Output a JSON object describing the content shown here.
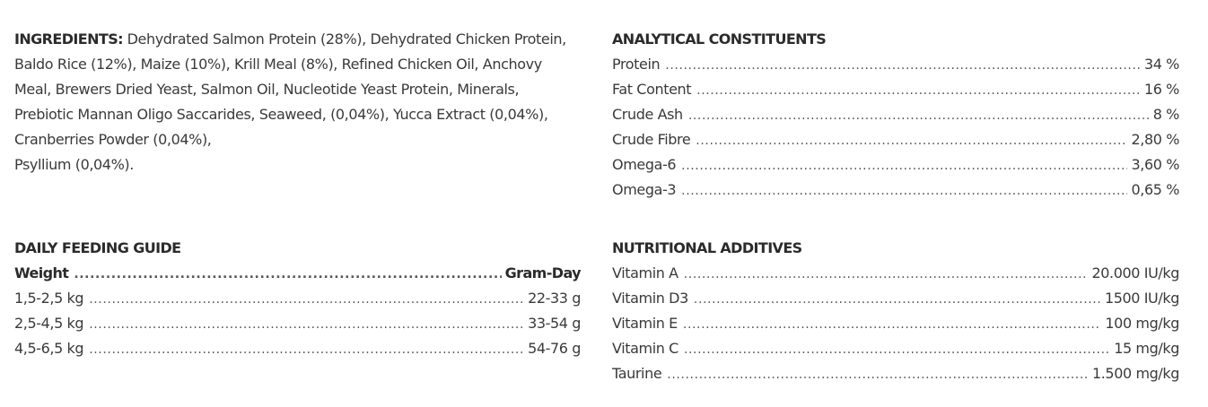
{
  "ingredients": {
    "label": "INGREDIENTS:",
    "lines": [
      "Dehydrated Salmon Protein (28%), Dehydrated Chicken Protein,",
      "Baldo Rice (12%), Maize (10%), Krill Meal (8%), Refined Chicken Oil, Anchovy",
      "Meal, Brewers Dried Yeast, Salmon Oil, Nucleotide Yeast Protein, Minerals,",
      "Prebiotic Mannan Oligo Saccarides, Seaweed, (0,04%), Yucca Extract (0,04%),",
      "Cranberries Powder (0,04%),",
      "Psyllium (0,04%)."
    ]
  },
  "analytical": {
    "title": "ANALYTICAL CONSTITUENTS",
    "rows": [
      {
        "name": "Protein",
        "value": "34 %"
      },
      {
        "name": "Fat Content",
        "value": "16 %"
      },
      {
        "name": "Crude Ash",
        "value": "8 %"
      },
      {
        "name": "Crude Fibre",
        "value": "2,80 %"
      },
      {
        "name": "Omega-6",
        "value": "3,60 %"
      },
      {
        "name": "Omega-3",
        "value": "0,65 %"
      }
    ]
  },
  "feeding": {
    "title": "DAILY FEEDING GUIDE",
    "header": {
      "name": "Weight",
      "value": "Gram-Day"
    },
    "rows": [
      {
        "name": "1,5-2,5 kg",
        "value": "22-33 g"
      },
      {
        "name": "2,5-4,5 kg",
        "value": "33-54 g"
      },
      {
        "name": "4,5-6,5 kg",
        "value": "54-76 g"
      }
    ]
  },
  "additives": {
    "title": "NUTRITIONAL ADDITIVES",
    "rows": [
      {
        "name": "Vitamin A",
        "value": "20.000 IU/kg"
      },
      {
        "name": "Vitamin D3",
        "value": "1500 IU/kg"
      },
      {
        "name": "Vitamin E",
        "value": "100 mg/kg"
      },
      {
        "name": "Vitamin C",
        "value": "15 mg/kg"
      },
      {
        "name": "Taurine",
        "value": "1.500 mg/kg"
      }
    ]
  }
}
